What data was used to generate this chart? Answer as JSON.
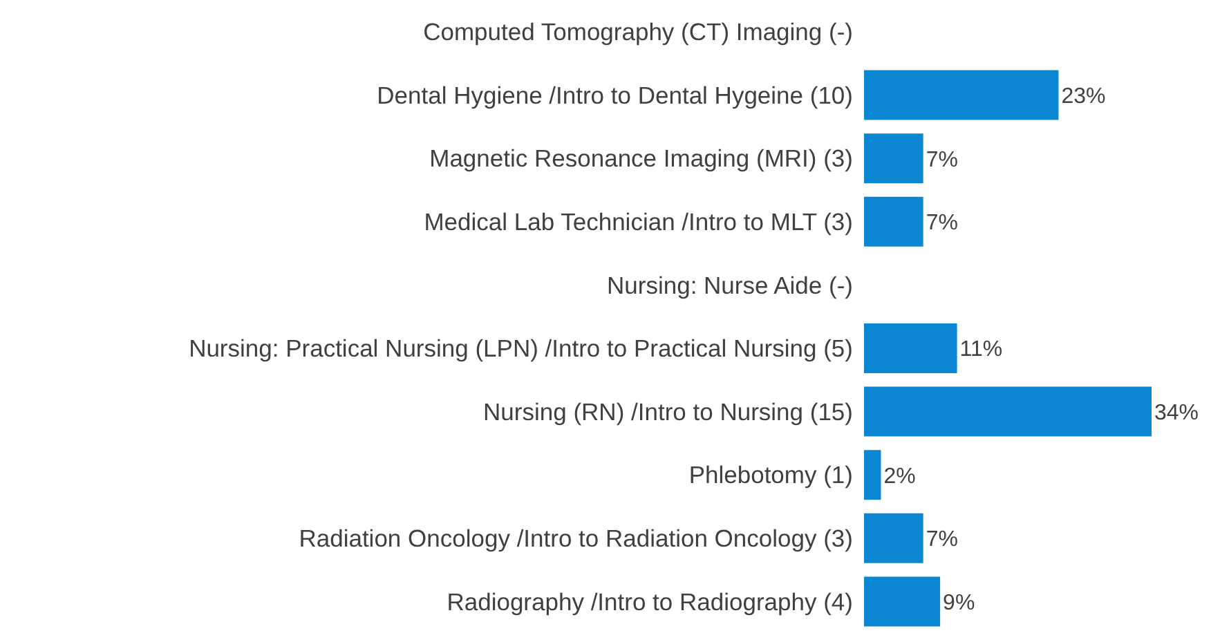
{
  "chart_data": {
    "type": "bar",
    "orientation": "horizontal",
    "categories": [
      "Computed Tomography (CT) Imaging  (-)",
      "Dental Hygiene /Intro to Dental Hygeine (10)",
      "Magnetic Resonance Imaging (MRI) (3)",
      "Medical Lab Technician /Intro to MLT (3)",
      "Nursing: Nurse Aide (-)",
      "Nursing: Practical Nursing (LPN) /Intro to Practical Nursing (5)",
      "Nursing (RN) /Intro to Nursing (15)",
      "Phlebotomy (1)",
      "Radiation Oncology /Intro to Radiation Oncology (3)",
      "Radiography /Intro to Radiography (4)"
    ],
    "values": [
      null,
      23,
      7,
      7,
      null,
      11,
      34,
      2,
      7,
      9
    ],
    "value_labels": [
      null,
      "23%",
      "7%",
      "7%",
      null,
      "11%",
      "34%",
      "2%",
      "7%",
      "9%"
    ],
    "color": "#0a86d3"
  }
}
